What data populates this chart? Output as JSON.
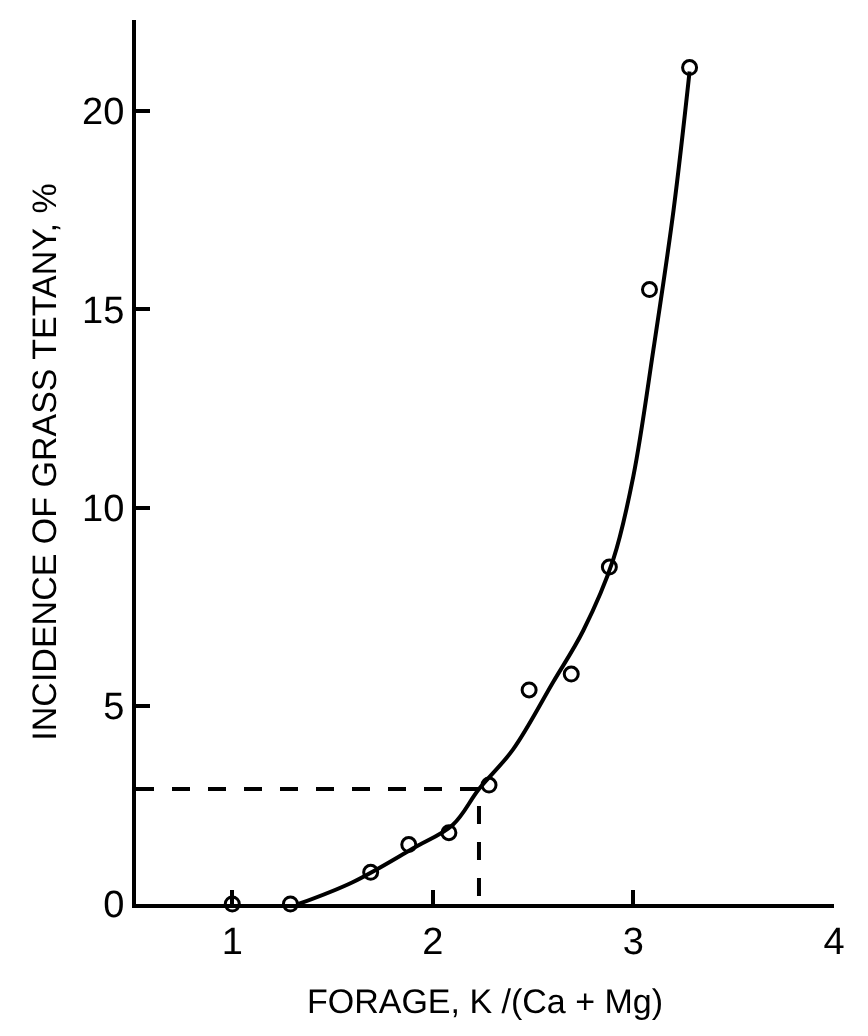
{
  "chart_data": {
    "type": "scatter",
    "xlabel": "FORAGE, K /(Ca + Mg)",
    "ylabel": "INCIDENCE OF GRASS TETANY, %",
    "series": [
      {
        "type": "scatter",
        "color": "#000000",
        "marker": "circle",
        "x": [
          1.0,
          1.29,
          1.69,
          1.88,
          2.08,
          2.28,
          2.48,
          2.69,
          2.88,
          3.08,
          3.28
        ],
        "values": [
          0,
          0,
          0.8,
          1.5,
          1.8,
          3.0,
          5.4,
          5.8,
          8.5,
          15.5,
          21.1
        ]
      },
      {
        "type": "line",
        "color": "#000000",
        "marker": "none",
        "line_style": "solid",
        "x": [
          1.33,
          1.6,
          1.9,
          2.1,
          2.23,
          2.4,
          2.6,
          2.75,
          2.9,
          3.0,
          3.1,
          3.2,
          3.28
        ],
        "values": [
          0,
          0.55,
          1.4,
          2.0,
          2.9,
          3.9,
          5.6,
          6.9,
          8.7,
          10.8,
          14.0,
          17.5,
          21.0
        ]
      },
      {
        "type": "line",
        "color": "#000000",
        "marker": "none",
        "line_style": "dashed",
        "x": [
          0.52,
          2.23,
          2.23
        ],
        "values": [
          2.9,
          2.9,
          0
        ]
      }
    ],
    "xlim": [
      0.52,
      4.0
    ],
    "ylim": [
      0,
      22.3
    ],
    "xticks": [
      1,
      2,
      3,
      4
    ],
    "yticks": [
      0,
      5,
      10,
      15,
      20
    ]
  }
}
